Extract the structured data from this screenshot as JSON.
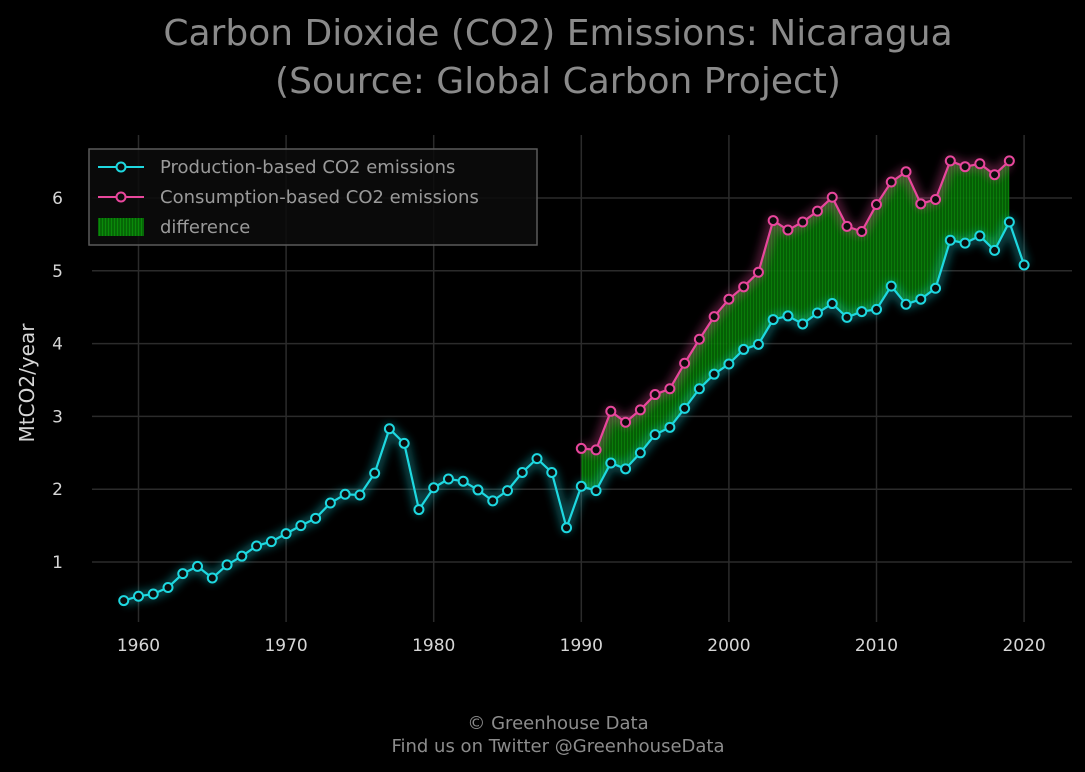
{
  "chart_data": {
    "type": "line",
    "title": "Carbon Dioxide (CO2) Emissions: Nicaragua",
    "subtitle": "(Source: Global Carbon Project)",
    "xlabel": "",
    "ylabel": "MtCO2/year",
    "xlim": [
      1957.2,
      2023
    ],
    "ylim": [
      0.18,
      6.85
    ],
    "x_ticks": [
      1960,
      1970,
      1980,
      1990,
      2000,
      2010,
      2020
    ],
    "y_ticks": [
      1,
      2,
      3,
      4,
      5,
      6
    ],
    "grid": true,
    "legend_position": "top-left",
    "series": [
      {
        "name": "Production-based CO2 emissions",
        "color": "#1ed8e0",
        "x": [
          1959,
          1960,
          1961,
          1962,
          1963,
          1964,
          1965,
          1966,
          1967,
          1968,
          1969,
          1970,
          1971,
          1972,
          1973,
          1974,
          1975,
          1976,
          1977,
          1978,
          1979,
          1980,
          1981,
          1982,
          1983,
          1984,
          1985,
          1986,
          1987,
          1988,
          1989,
          1990,
          1991,
          1992,
          1993,
          1994,
          1995,
          1996,
          1997,
          1998,
          1999,
          2000,
          2001,
          2002,
          2003,
          2004,
          2005,
          2006,
          2007,
          2008,
          2009,
          2010,
          2011,
          2012,
          2013,
          2014,
          2015,
          2016,
          2017,
          2018,
          2019,
          2020
        ],
        "values": [
          0.47,
          0.53,
          0.56,
          0.65,
          0.84,
          0.94,
          0.78,
          0.96,
          1.08,
          1.22,
          1.28,
          1.39,
          1.5,
          1.6,
          1.81,
          1.93,
          1.92,
          2.22,
          2.83,
          2.63,
          1.72,
          2.02,
          2.14,
          2.11,
          1.99,
          1.84,
          1.98,
          2.23,
          2.42,
          2.23,
          1.47,
          2.04,
          1.98,
          2.36,
          2.28,
          2.5,
          2.75,
          2.85,
          3.11,
          3.38,
          3.58,
          3.72,
          3.92,
          3.99,
          4.33,
          4.38,
          4.27,
          4.42,
          4.55,
          4.36,
          4.44,
          4.47,
          4.79,
          4.54,
          4.61,
          4.76,
          5.42,
          5.38,
          5.48,
          5.28,
          5.67,
          5.08
        ]
      },
      {
        "name": "Consumption-based CO2 emissions",
        "color": "#e8479c",
        "x": [
          1990,
          1991,
          1992,
          1993,
          1994,
          1995,
          1996,
          1997,
          1998,
          1999,
          2000,
          2001,
          2002,
          2003,
          2004,
          2005,
          2006,
          2007,
          2008,
          2009,
          2010,
          2011,
          2012,
          2013,
          2014,
          2015,
          2016,
          2017,
          2018,
          2019
        ],
        "values": [
          2.56,
          2.54,
          3.07,
          2.92,
          3.09,
          3.3,
          3.38,
          3.73,
          4.06,
          4.37,
          4.61,
          4.78,
          4.98,
          5.69,
          5.56,
          5.67,
          5.82,
          6.01,
          5.61,
          5.54,
          5.91,
          6.22,
          6.36,
          5.92,
          5.98,
          6.51,
          6.43,
          6.47,
          6.32,
          6.51
        ]
      }
    ],
    "fill": {
      "name": "difference",
      "color": "#0a7a0a",
      "between": [
        "Production-based CO2 emissions",
        "Consumption-based CO2 emissions"
      ]
    }
  },
  "footer": {
    "line1": "© Greenhouse Data",
    "line2": "Find us on Twitter @GreenhouseData"
  }
}
